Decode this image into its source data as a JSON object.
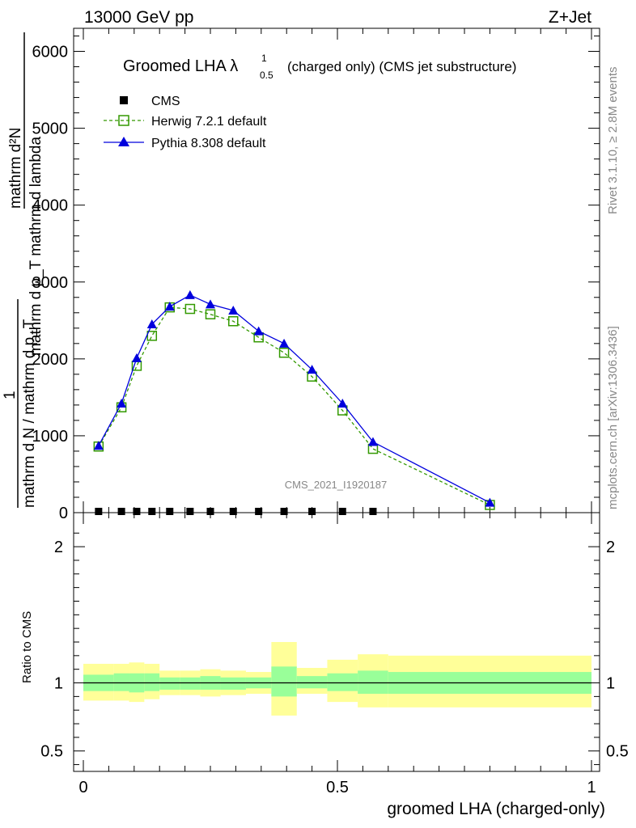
{
  "header": {
    "left": "13000 GeV pp",
    "right": "Z+Jet"
  },
  "side": {
    "top": "Rivet 3.1.10, ≥ 2.8M events",
    "bottom": "mcplots.cern.ch [arXiv:1306.3436]"
  },
  "chart_data": {
    "type": "line",
    "title": "Groomed LHA λ",
    "title_sup": "1",
    "title_sub": "0.5",
    "title_suffix": "(charged only) (CMS jet substructure)",
    "watermark": "CMS_2021_I1920187",
    "ylabel_main_lines": [
      "mathrm d²N",
      "mathrm d p_T mathrm d lambda",
      "1",
      "mathrm d N / mathrm d p_T"
    ],
    "ylabel_ratio": "Ratio to CMS",
    "xlabel": "groomed LHA (charged-only)",
    "xlim": [
      0,
      1
    ],
    "ylim_main": [
      0,
      6300
    ],
    "ylim_ratio": [
      0.35,
      2.25
    ],
    "main_y_ticks": [
      {
        "value": 0,
        "label": "0"
      },
      {
        "value": 1000,
        "label": "1000"
      },
      {
        "value": 2000,
        "label": "2000"
      },
      {
        "value": 3000,
        "label": "3000"
      },
      {
        "value": 4000,
        "label": "4000"
      },
      {
        "value": 5000,
        "label": "5000"
      },
      {
        "value": 6000,
        "label": "6000"
      }
    ],
    "ratio_y_ticks": [
      {
        "value": 0.5,
        "label": "0.5"
      },
      {
        "value": 1,
        "label": "1"
      },
      {
        "value": 2,
        "label": "2"
      }
    ],
    "x_ticks": [
      {
        "value": 0,
        "label": "0"
      },
      {
        "value": 0.5,
        "label": "0.5"
      },
      {
        "value": 1,
        "label": "1"
      }
    ],
    "legend_position": "top-left",
    "series": [
      {
        "name": "CMS",
        "color": "#000000",
        "marker": "filled-square",
        "x": [
          0.03,
          0.075,
          0.105,
          0.135,
          0.17,
          0.21,
          0.25,
          0.295,
          0.345,
          0.395,
          0.45,
          0.51,
          0.57
        ],
        "y": [
          0,
          0,
          0,
          0,
          0,
          0,
          0,
          0,
          0,
          0,
          0,
          0,
          0
        ]
      },
      {
        "name": "Herwig 7.2.1 default",
        "color": "#339900",
        "marker": "open-square",
        "dash": true,
        "x": [
          0.03,
          0.075,
          0.105,
          0.135,
          0.17,
          0.21,
          0.25,
          0.295,
          0.345,
          0.395,
          0.45,
          0.51,
          0.57,
          0.8
        ],
        "y": [
          860,
          1370,
          1910,
          2300,
          2670,
          2650,
          2580,
          2490,
          2280,
          2080,
          1770,
          1330,
          830,
          100
        ]
      },
      {
        "name": "Pythia 8.308 default",
        "color": "#0000dd",
        "marker": "filled-triangle",
        "x": [
          0.03,
          0.075,
          0.105,
          0.135,
          0.17,
          0.21,
          0.25,
          0.295,
          0.345,
          0.395,
          0.45,
          0.51,
          0.57,
          0.8
        ],
        "y": [
          870,
          1420,
          2010,
          2450,
          2680,
          2830,
          2710,
          2630,
          2360,
          2200,
          1860,
          1420,
          920,
          130
        ]
      }
    ],
    "ratio_bands": [
      {
        "x0": 0.0,
        "x1": 0.06,
        "inner": [
          0.94,
          1.06
        ],
        "outer": [
          0.87,
          1.14
        ]
      },
      {
        "x0": 0.06,
        "x1": 0.09,
        "inner": [
          0.94,
          1.07
        ],
        "outer": [
          0.87,
          1.14
        ]
      },
      {
        "x0": 0.09,
        "x1": 0.12,
        "inner": [
          0.93,
          1.07
        ],
        "outer": [
          0.86,
          1.15
        ]
      },
      {
        "x0": 0.12,
        "x1": 0.15,
        "inner": [
          0.94,
          1.07
        ],
        "outer": [
          0.88,
          1.14
        ]
      },
      {
        "x0": 0.15,
        "x1": 0.19,
        "inner": [
          0.95,
          1.04
        ],
        "outer": [
          0.91,
          1.09
        ]
      },
      {
        "x0": 0.19,
        "x1": 0.23,
        "inner": [
          0.95,
          1.04
        ],
        "outer": [
          0.91,
          1.09
        ]
      },
      {
        "x0": 0.23,
        "x1": 0.27,
        "inner": [
          0.95,
          1.05
        ],
        "outer": [
          0.9,
          1.1
        ]
      },
      {
        "x0": 0.27,
        "x1": 0.32,
        "inner": [
          0.95,
          1.04
        ],
        "outer": [
          0.91,
          1.09
        ]
      },
      {
        "x0": 0.32,
        "x1": 0.37,
        "inner": [
          0.96,
          1.04
        ],
        "outer": [
          0.92,
          1.08
        ]
      },
      {
        "x0": 0.37,
        "x1": 0.42,
        "inner": [
          0.9,
          1.12
        ],
        "outer": [
          0.76,
          1.3
        ]
      },
      {
        "x0": 0.42,
        "x1": 0.48,
        "inner": [
          0.96,
          1.05
        ],
        "outer": [
          0.92,
          1.11
        ]
      },
      {
        "x0": 0.48,
        "x1": 0.54,
        "inner": [
          0.94,
          1.07
        ],
        "outer": [
          0.86,
          1.17
        ]
      },
      {
        "x0": 0.54,
        "x1": 0.6,
        "inner": [
          0.92,
          1.09
        ],
        "outer": [
          0.82,
          1.21
        ]
      },
      {
        "x0": 0.6,
        "x1": 1.0,
        "inner": [
          0.92,
          1.08
        ],
        "outer": [
          0.82,
          1.2
        ]
      }
    ]
  }
}
